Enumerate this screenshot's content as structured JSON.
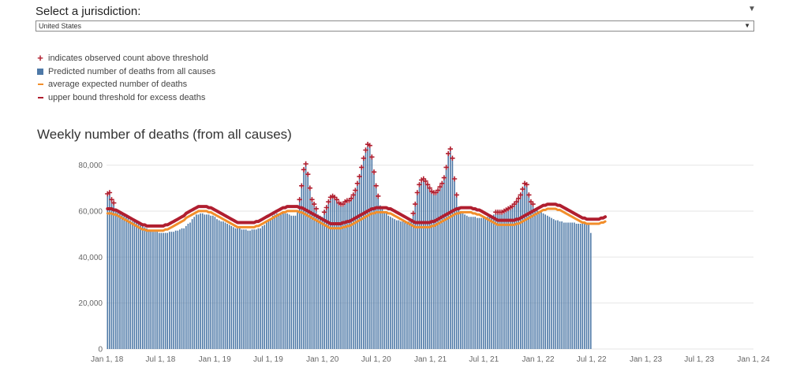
{
  "filter": {
    "label": "Select a jurisdiction:",
    "selected": "United States",
    "arrow_icon": "caret-down-icon"
  },
  "legend": [
    {
      "symbol": "plus",
      "color": "#b01e2f",
      "text": "indicates observed count above threshold"
    },
    {
      "symbol": "square",
      "color": "#4e79a7",
      "text": "Predicted number of deaths from all causes"
    },
    {
      "symbol": "dash",
      "color": "#f28e2b",
      "text": "average expected number of deaths"
    },
    {
      "symbol": "dash",
      "color": "#b01e2f",
      "text": "upper bound threshold for excess deaths"
    }
  ],
  "chart_data": {
    "type": "bar",
    "title": "Weekly number of deaths (from all causes)",
    "xlabel": "",
    "ylabel": "",
    "ylim": [
      0,
      85000
    ],
    "yticks": [
      0,
      20000,
      40000,
      60000,
      80000
    ],
    "ytick_labels": [
      "0",
      "20,000",
      "40,000",
      "60,000",
      "80,000"
    ],
    "x_start": "2017-12-30",
    "x_end": "2024-01-01",
    "xtick_labels": [
      "Jan 1, 18",
      "Jul 1, 18",
      "Jan 1, 19",
      "Jul 1, 19",
      "Jan 1, 20",
      "Jul 1, 20",
      "Jan 1, 21",
      "Jul 1, 21",
      "Jan 1, 22",
      "Jul 1, 22",
      "Jan 1, 23",
      "Jul 1, 23",
      "Jan 1, 24"
    ],
    "xtick_dates": [
      "2018-01-01",
      "2018-07-01",
      "2019-01-01",
      "2019-07-01",
      "2020-01-01",
      "2020-07-01",
      "2021-01-01",
      "2021-07-01",
      "2022-01-01",
      "2022-07-01",
      "2023-01-01",
      "2023-07-01",
      "2024-01-01"
    ],
    "grid": true,
    "series": [
      {
        "name": "Predicted number of deaths from all causes",
        "color": "#4e79a7",
        "values": [
          66500,
          67000,
          64000,
          62500,
          61000,
          60000,
          59000,
          58500,
          58000,
          57500,
          57000,
          56000,
          55500,
          55500,
          55000,
          54500,
          54000,
          53500,
          53000,
          52500,
          52000,
          51500,
          51000,
          51000,
          51000,
          50500,
          50500,
          50500,
          50500,
          50500,
          51000,
          51000,
          51000,
          51500,
          51500,
          52000,
          52500,
          52500,
          53500,
          54500,
          55000,
          56500,
          57500,
          58500,
          58500,
          59000,
          59000,
          58500,
          58500,
          58500,
          58000,
          58000,
          57500,
          56500,
          56000,
          55500,
          55500,
          55000,
          54500,
          54000,
          53500,
          53000,
          52500,
          52500,
          52500,
          52000,
          52000,
          52000,
          51500,
          51500,
          52000,
          52000,
          52000,
          52500,
          52500,
          53500,
          54000,
          55000,
          56000,
          57000,
          58000,
          58500,
          59000,
          59000,
          59500,
          59500,
          59000,
          59000,
          58500,
          58000,
          58000,
          58000,
          60000,
          64000,
          70000,
          77000,
          79500,
          75000,
          69000,
          64000,
          62000,
          60000,
          58500,
          58000,
          57500,
          58500,
          60500,
          63000,
          65000,
          65500,
          65000,
          64000,
          62500,
          62000,
          62000,
          63000,
          63500,
          63500,
          64500,
          66000,
          68000,
          71000,
          74000,
          78000,
          82000,
          85500,
          88000,
          87500,
          82500,
          76000,
          70000,
          65500,
          62500,
          61000,
          60000,
          59000,
          58000,
          57500,
          57000,
          56500,
          56000,
          56000,
          55500,
          55500,
          55500,
          55500,
          55500,
          56000,
          58000,
          62000,
          67000,
          70500,
          72500,
          73000,
          72000,
          70500,
          69000,
          67500,
          67000,
          67000,
          68000,
          69500,
          71000,
          73500,
          78000,
          84000,
          86000,
          82000,
          73000,
          66000,
          62000,
          60000,
          59000,
          58500,
          58000,
          57500,
          57500,
          57500,
          57500,
          57000,
          57000,
          57000,
          57500,
          57500,
          57500,
          58000,
          58000,
          58500,
          58500,
          58500,
          58500,
          58500,
          59000,
          59500,
          60000,
          60500,
          61000,
          62000,
          63000,
          64500,
          66000,
          68500,
          71000,
          70500,
          66000,
          63000,
          62000,
          61000,
          60500,
          60000,
          59500,
          59000,
          58500,
          58000,
          57500,
          57000,
          56500,
          56000,
          56000,
          55500,
          55500,
          55000,
          55000,
          55000,
          55000,
          55000,
          55000,
          54500,
          54500,
          54500,
          54500,
          54500,
          54500,
          54000,
          50500
        ]
      },
      {
        "name": "average expected number of deaths",
        "color": "#f28e2b",
        "values": [
          59000,
          59000,
          59000,
          58500,
          58500,
          58000,
          57500,
          57000,
          56500,
          56000,
          55500,
          55000,
          54500,
          54000,
          53500,
          53000,
          52500,
          52000,
          52000,
          51500,
          51500,
          51500,
          51500,
          51500,
          51500,
          51500,
          51500,
          51500,
          52000,
          52000,
          52500,
          53000,
          53500,
          54000,
          54500,
          55000,
          55500,
          56000,
          57000,
          57500,
          58000,
          58500,
          59000,
          59500,
          60000,
          60000,
          60000,
          60000,
          60000,
          59500,
          59500,
          59000,
          58500,
          58000,
          57500,
          57000,
          56500,
          56000,
          55500,
          55000,
          54500,
          54000,
          53500,
          53000,
          53000,
          53000,
          53000,
          53000,
          53000,
          53000,
          53000,
          53000,
          53500,
          53500,
          54000,
          54500,
          55000,
          55500,
          56000,
          56500,
          57000,
          57500,
          58000,
          58500,
          59000,
          59500,
          59500,
          60000,
          60000,
          60000,
          60000,
          60000,
          60000,
          59500,
          59500,
          59000,
          58500,
          58000,
          57500,
          57000,
          56500,
          56000,
          55500,
          55000,
          54500,
          54000,
          53500,
          53000,
          52500,
          52500,
          52500,
          52500,
          52500,
          52500,
          53000,
          53000,
          53500,
          53500,
          54000,
          54500,
          55000,
          55500,
          56000,
          56500,
          57000,
          57500,
          58000,
          58500,
          59000,
          59000,
          59500,
          59500,
          59500,
          59500,
          59500,
          59500,
          59000,
          59000,
          58500,
          58000,
          57500,
          57000,
          56500,
          56000,
          55500,
          55000,
          54500,
          54000,
          53500,
          53000,
          53000,
          53000,
          53000,
          53000,
          53000,
          53000,
          53000,
          53500,
          53500,
          54000,
          54500,
          55000,
          55500,
          56000,
          56500,
          57000,
          57500,
          58000,
          58500,
          59000,
          59000,
          59500,
          59500,
          59500,
          59500,
          59500,
          59500,
          59000,
          59000,
          58500,
          58500,
          58000,
          57500,
          57000,
          56500,
          56000,
          55500,
          55000,
          54500,
          54000,
          54000,
          54000,
          54000,
          54000,
          54000,
          54000,
          54000,
          54000,
          54500,
          54500,
          55000,
          55500,
          56000,
          56500,
          57000,
          57500,
          58000,
          58500,
          59000,
          59500,
          60000,
          60500,
          60500,
          61000,
          61000,
          61000,
          61000,
          61000,
          60500,
          60500,
          60000,
          59500,
          59000,
          58500,
          58000,
          57500,
          57000,
          56500,
          56000,
          55500,
          55000,
          55000,
          54500,
          54500,
          54500,
          54500,
          54500,
          54500,
          54500,
          55000,
          55000,
          55500
        ]
      },
      {
        "name": "upper bound threshold for excess deaths",
        "color": "#b01e2f",
        "values": [
          61000,
          61000,
          61000,
          60500,
          60500,
          60000,
          59500,
          59000,
          58500,
          58000,
          57500,
          57000,
          56500,
          56000,
          55500,
          55000,
          54500,
          54000,
          54000,
          53500,
          53500,
          53500,
          53500,
          53500,
          53500,
          53500,
          53500,
          53500,
          54000,
          54000,
          54500,
          55000,
          55500,
          56000,
          56500,
          57000,
          57500,
          58000,
          59000,
          59500,
          60000,
          60500,
          61000,
          61500,
          62000,
          62000,
          62000,
          62000,
          62000,
          61500,
          61500,
          61000,
          60500,
          60000,
          59500,
          59000,
          58500,
          58000,
          57500,
          57000,
          56500,
          56000,
          55500,
          55000,
          55000,
          55000,
          55000,
          55000,
          55000,
          55000,
          55000,
          55000,
          55500,
          55500,
          56000,
          56500,
          57000,
          57500,
          58000,
          58500,
          59000,
          59500,
          60000,
          60500,
          61000,
          61500,
          61500,
          62000,
          62000,
          62000,
          62000,
          62000,
          62000,
          61500,
          61500,
          61000,
          60500,
          60000,
          59500,
          59000,
          58500,
          58000,
          57500,
          57000,
          56500,
          56000,
          55500,
          55000,
          54500,
          54500,
          54500,
          54500,
          54500,
          54500,
          55000,
          55000,
          55500,
          55500,
          56000,
          56500,
          57000,
          57500,
          58000,
          58500,
          59000,
          59500,
          60000,
          60500,
          61000,
          61000,
          61500,
          61500,
          61500,
          61500,
          61500,
          61500,
          61000,
          61000,
          60500,
          60000,
          59500,
          59000,
          58500,
          58000,
          57500,
          57000,
          56500,
          56000,
          55500,
          55000,
          55000,
          55000,
          55000,
          55000,
          55000,
          55000,
          55000,
          55500,
          55500,
          56000,
          56500,
          57000,
          57500,
          58000,
          58500,
          59000,
          59500,
          60000,
          60500,
          61000,
          61000,
          61500,
          61500,
          61500,
          61500,
          61500,
          61500,
          61000,
          61000,
          60500,
          60500,
          60000,
          59500,
          59000,
          58500,
          58000,
          57500,
          57000,
          56500,
          56000,
          56000,
          56000,
          56000,
          56000,
          56000,
          56000,
          56000,
          56000,
          56500,
          56500,
          57000,
          57500,
          58000,
          58500,
          59000,
          59500,
          60000,
          60500,
          61000,
          61500,
          62000,
          62500,
          62500,
          63000,
          63000,
          63000,
          63000,
          63000,
          62500,
          62500,
          62000,
          61500,
          61000,
          60500,
          60000,
          59500,
          59000,
          58500,
          58000,
          57500,
          57000,
          57000,
          56500,
          56500,
          56500,
          56500,
          56500,
          56500,
          56500,
          57000,
          57000,
          57500
        ]
      }
    ]
  }
}
